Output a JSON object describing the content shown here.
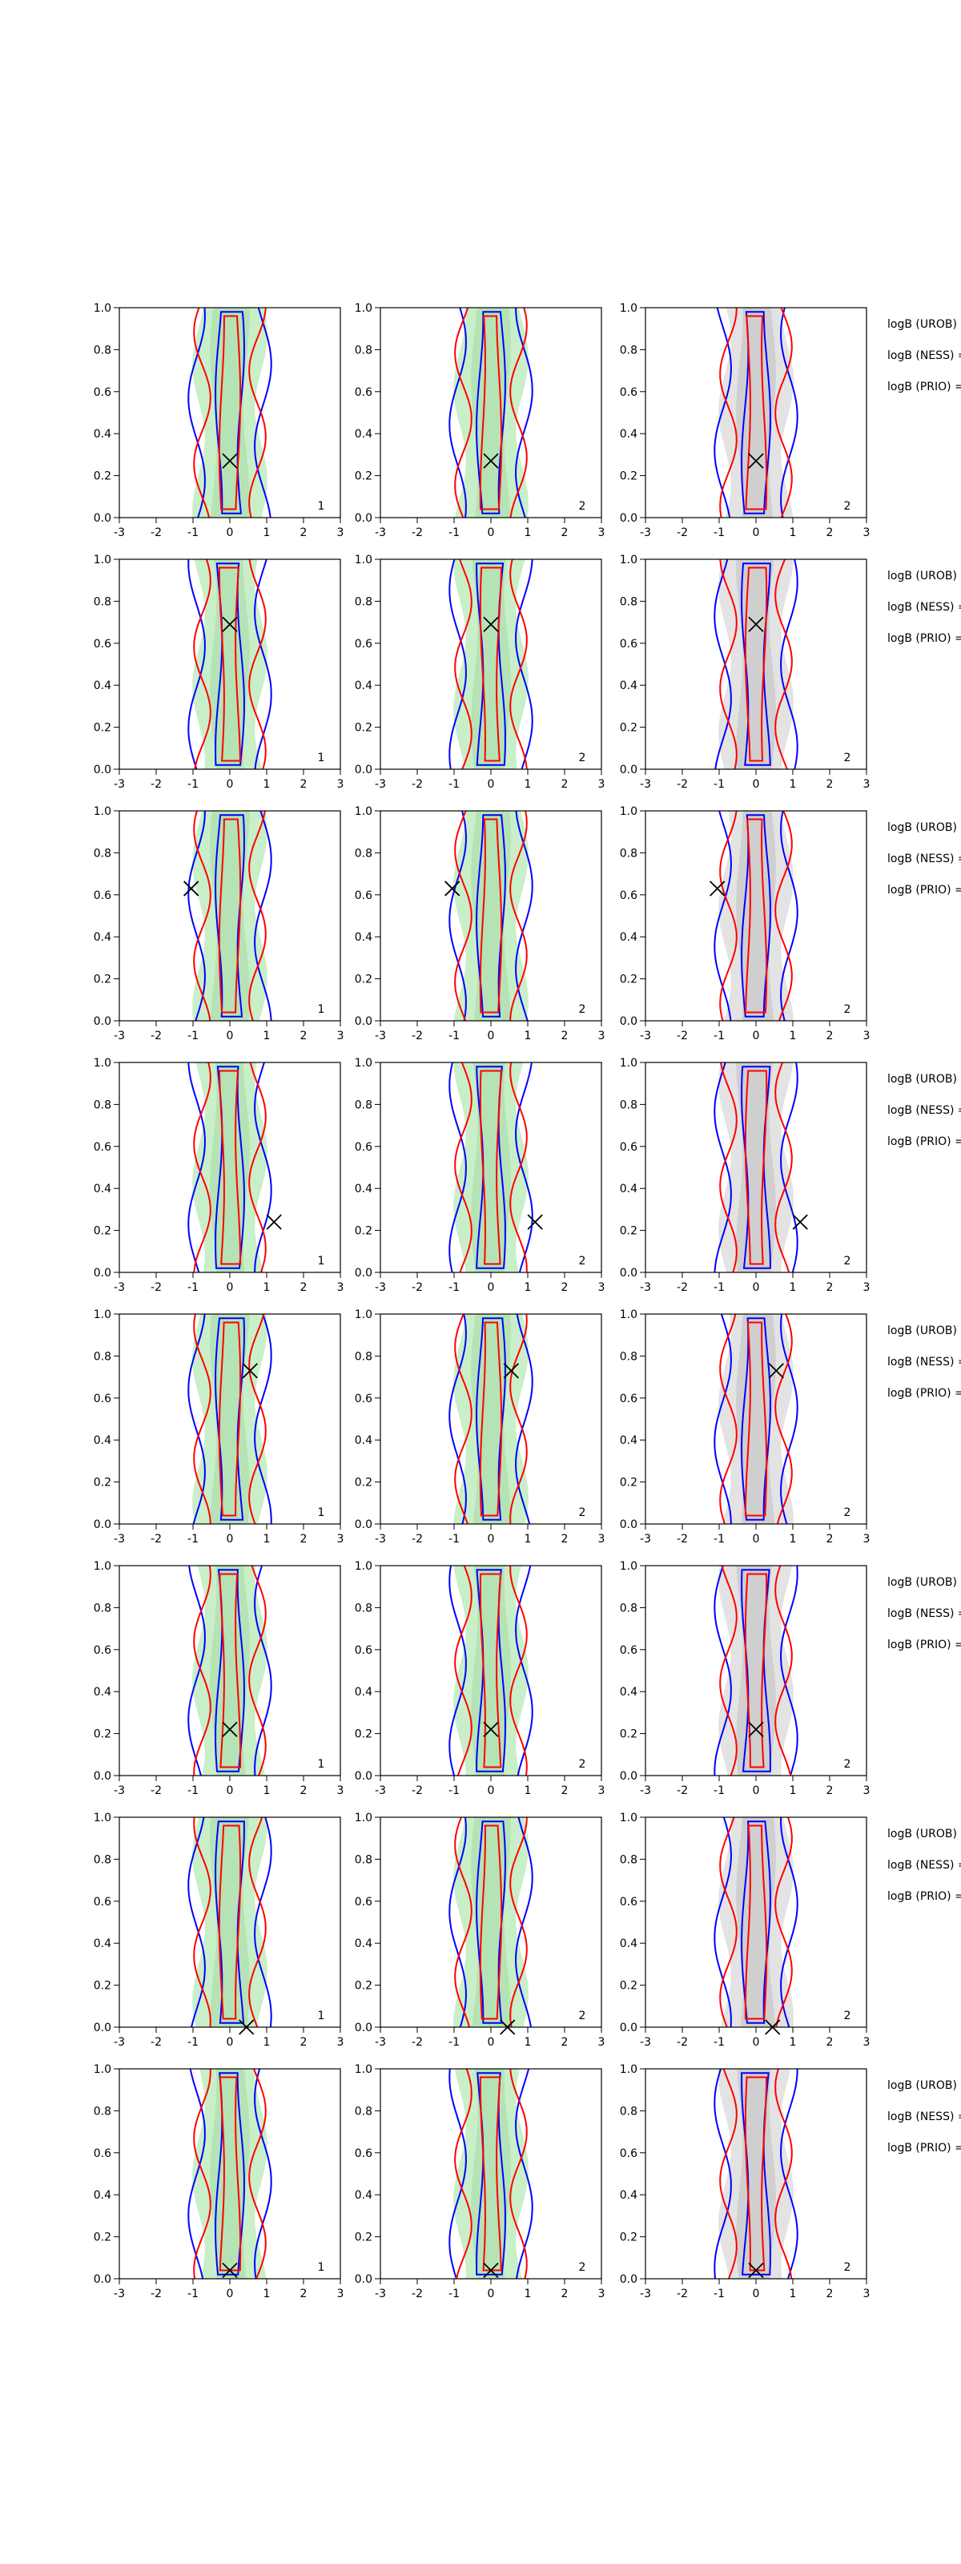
{
  "chart_data": [
    {
      "type": "contour",
      "annotation": "1",
      "x": [
        0
      ],
      "y": [
        0.27
      ],
      "xlim": [
        -3,
        3
      ],
      "xticks": [
        -3,
        -2,
        -1,
        0,
        1,
        2,
        3
      ],
      "ylim": [
        0,
        1
      ],
      "yticks": [
        {
          "value": 0,
          "label": "0.0"
        },
        {
          "value": 0.2,
          "label": "0.2"
        },
        {
          "value": 0.4,
          "label": "0.4"
        },
        {
          "value": 0.6,
          "label": "0.6"
        },
        {
          "value": 0.8,
          "label": "0.8"
        },
        {
          "value": 1,
          "label": "1.0"
        }
      ]
    },
    {
      "type": "contour",
      "annotation": "2",
      "x": [
        0
      ],
      "y": [
        0.27
      ],
      "xlim": [
        -3,
        3
      ],
      "xticks": [
        -3,
        -2,
        -1,
        0,
        1,
        2,
        3
      ],
      "ylim": [
        0,
        1
      ],
      "yticks": [
        {
          "value": 0,
          "label": "0.0"
        },
        {
          "value": 0.2,
          "label": "0.2"
        },
        {
          "value": 0.4,
          "label": "0.4"
        },
        {
          "value": 0.6,
          "label": "0.6"
        },
        {
          "value": 0.8,
          "label": "0.8"
        },
        {
          "value": 1,
          "label": "1.0"
        }
      ]
    },
    {
      "type": "contour",
      "annotation": "2",
      "x": [
        0
      ],
      "y": [
        0.27
      ],
      "xlim": [
        -3,
        3
      ],
      "xticks": [
        -3,
        -2,
        -1,
        0,
        1,
        2,
        3
      ],
      "ylim": [
        0,
        1
      ],
      "yticks": [
        {
          "value": 0,
          "label": "0.0"
        },
        {
          "value": 0.2,
          "label": "0.2"
        },
        {
          "value": 0.4,
          "label": "0.4"
        },
        {
          "value": 0.6,
          "label": "0.6"
        },
        {
          "value": 0.8,
          "label": "0.8"
        },
        {
          "value": 1,
          "label": "1.0"
        }
      ]
    },
    {
      "type": "contour",
      "annotation": "1",
      "x": [
        0
      ],
      "y": [
        0.69
      ],
      "xlim": [
        -3,
        3
      ],
      "xticks": [
        -3,
        -2,
        -1,
        0,
        1,
        2,
        3
      ],
      "ylim": [
        0,
        1
      ],
      "yticks": [
        {
          "value": 0,
          "label": "0.0"
        },
        {
          "value": 0.2,
          "label": "0.2"
        },
        {
          "value": 0.4,
          "label": "0.4"
        },
        {
          "value": 0.6,
          "label": "0.6"
        },
        {
          "value": 0.8,
          "label": "0.8"
        },
        {
          "value": 1,
          "label": "1.0"
        }
      ]
    },
    {
      "type": "contour",
      "annotation": "2",
      "x": [
        0
      ],
      "y": [
        0.69
      ],
      "xlim": [
        -3,
        3
      ],
      "xticks": [
        -3,
        -2,
        -1,
        0,
        1,
        2,
        3
      ],
      "ylim": [
        0,
        1
      ],
      "yticks": [
        {
          "value": 0,
          "label": "0.0"
        },
        {
          "value": 0.2,
          "label": "0.2"
        },
        {
          "value": 0.4,
          "label": "0.4"
        },
        {
          "value": 0.6,
          "label": "0.6"
        },
        {
          "value": 0.8,
          "label": "0.8"
        },
        {
          "value": 1,
          "label": "1.0"
        }
      ]
    },
    {
      "type": "contour",
      "annotation": "2",
      "x": [
        0
      ],
      "y": [
        0.69
      ],
      "xlim": [
        -3,
        3
      ],
      "xticks": [
        -3,
        -2,
        -1,
        0,
        1,
        2,
        3
      ],
      "ylim": [
        0,
        1
      ],
      "yticks": [
        {
          "value": 0,
          "label": "0.0"
        },
        {
          "value": 0.2,
          "label": "0.2"
        },
        {
          "value": 0.4,
          "label": "0.4"
        },
        {
          "value": 0.6,
          "label": "0.6"
        },
        {
          "value": 0.8,
          "label": "0.8"
        },
        {
          "value": 1,
          "label": "1.0"
        }
      ]
    },
    {
      "type": "contour",
      "annotation": "1",
      "x": [
        -1.05
      ],
      "y": [
        0.63
      ],
      "xlim": [
        -3,
        3
      ],
      "xticks": [
        -3,
        -2,
        -1,
        0,
        1,
        2,
        3
      ],
      "ylim": [
        0,
        1
      ],
      "yticks": [
        {
          "value": 0,
          "label": "0.0"
        },
        {
          "value": 0.2,
          "label": "0.2"
        },
        {
          "value": 0.4,
          "label": "0.4"
        },
        {
          "value": 0.6,
          "label": "0.6"
        },
        {
          "value": 0.8,
          "label": "0.8"
        },
        {
          "value": 1,
          "label": "1.0"
        }
      ]
    },
    {
      "type": "contour",
      "annotation": "2",
      "x": [
        -1.05
      ],
      "y": [
        0.63
      ],
      "xlim": [
        -3,
        3
      ],
      "xticks": [
        -3,
        -2,
        -1,
        0,
        1,
        2,
        3
      ],
      "ylim": [
        0,
        1
      ],
      "yticks": [
        {
          "value": 0,
          "label": "0.0"
        },
        {
          "value": 0.2,
          "label": "0.2"
        },
        {
          "value": 0.4,
          "label": "0.4"
        },
        {
          "value": 0.6,
          "label": "0.6"
        },
        {
          "value": 0.8,
          "label": "0.8"
        },
        {
          "value": 1,
          "label": "1.0"
        }
      ]
    },
    {
      "type": "contour",
      "annotation": "2",
      "x": [
        -1.05
      ],
      "y": [
        0.63
      ],
      "xlim": [
        -3,
        3
      ],
      "xticks": [
        -3,
        -2,
        -1,
        0,
        1,
        2,
        3
      ],
      "ylim": [
        0,
        1
      ],
      "yticks": [
        {
          "value": 0,
          "label": "0.0"
        },
        {
          "value": 0.2,
          "label": "0.2"
        },
        {
          "value": 0.4,
          "label": "0.4"
        },
        {
          "value": 0.6,
          "label": "0.6"
        },
        {
          "value": 0.8,
          "label": "0.8"
        },
        {
          "value": 1,
          "label": "1.0"
        }
      ]
    },
    {
      "type": "contour",
      "annotation": "1",
      "x": [
        1.2
      ],
      "y": [
        0.24
      ],
      "xlim": [
        -3,
        3
      ],
      "xticks": [
        -3,
        -2,
        -1,
        0,
        1,
        2,
        3
      ],
      "ylim": [
        0,
        1
      ],
      "yticks": [
        {
          "value": 0,
          "label": "0.0"
        },
        {
          "value": 0.2,
          "label": "0.2"
        },
        {
          "value": 0.4,
          "label": "0.4"
        },
        {
          "value": 0.6,
          "label": "0.6"
        },
        {
          "value": 0.8,
          "label": "0.8"
        },
        {
          "value": 1,
          "label": "1.0"
        }
      ]
    },
    {
      "type": "contour",
      "annotation": "2",
      "x": [
        1.2
      ],
      "y": [
        0.24
      ],
      "xlim": [
        -3,
        3
      ],
      "xticks": [
        -3,
        -2,
        -1,
        0,
        1,
        2,
        3
      ],
      "ylim": [
        0,
        1
      ],
      "yticks": [
        {
          "value": 0,
          "label": "0.0"
        },
        {
          "value": 0.2,
          "label": "0.2"
        },
        {
          "value": 0.4,
          "label": "0.4"
        },
        {
          "value": 0.6,
          "label": "0.6"
        },
        {
          "value": 0.8,
          "label": "0.8"
        },
        {
          "value": 1,
          "label": "1.0"
        }
      ]
    },
    {
      "type": "contour",
      "annotation": "2",
      "x": [
        1.2
      ],
      "y": [
        0.24
      ],
      "xlim": [
        -3,
        3
      ],
      "xticks": [
        -3,
        -2,
        -1,
        0,
        1,
        2,
        3
      ],
      "ylim": [
        0,
        1
      ],
      "yticks": [
        {
          "value": 0,
          "label": "0.0"
        },
        {
          "value": 0.2,
          "label": "0.2"
        },
        {
          "value": 0.4,
          "label": "0.4"
        },
        {
          "value": 0.6,
          "label": "0.6"
        },
        {
          "value": 0.8,
          "label": "0.8"
        },
        {
          "value": 1,
          "label": "1.0"
        }
      ]
    },
    {
      "type": "contour",
      "annotation": "1",
      "x": [
        0.55
      ],
      "y": [
        0.73
      ],
      "xlim": [
        -3,
        3
      ],
      "xticks": [
        -3,
        -2,
        -1,
        0,
        1,
        2,
        3
      ],
      "ylim": [
        0,
        1
      ],
      "yticks": [
        {
          "value": 0,
          "label": "0.0"
        },
        {
          "value": 0.2,
          "label": "0.2"
        },
        {
          "value": 0.4,
          "label": "0.4"
        },
        {
          "value": 0.6,
          "label": "0.6"
        },
        {
          "value": 0.8,
          "label": "0.8"
        },
        {
          "value": 1,
          "label": "1.0"
        }
      ]
    },
    {
      "type": "contour",
      "annotation": "2",
      "x": [
        0.55
      ],
      "y": [
        0.73
      ],
      "xlim": [
        -3,
        3
      ],
      "xticks": [
        -3,
        -2,
        -1,
        0,
        1,
        2,
        3
      ],
      "ylim": [
        0,
        1
      ],
      "yticks": [
        {
          "value": 0,
          "label": "0.0"
        },
        {
          "value": 0.2,
          "label": "0.2"
        },
        {
          "value": 0.4,
          "label": "0.4"
        },
        {
          "value": 0.6,
          "label": "0.6"
        },
        {
          "value": 0.8,
          "label": "0.8"
        },
        {
          "value": 1,
          "label": "1.0"
        }
      ]
    },
    {
      "type": "contour",
      "annotation": "2",
      "x": [
        0.55
      ],
      "y": [
        0.73
      ],
      "xlim": [
        -3,
        3
      ],
      "xticks": [
        -3,
        -2,
        -1,
        0,
        1,
        2,
        3
      ],
      "ylim": [
        0,
        1
      ],
      "yticks": [
        {
          "value": 0,
          "label": "0.0"
        },
        {
          "value": 0.2,
          "label": "0.2"
        },
        {
          "value": 0.4,
          "label": "0.4"
        },
        {
          "value": 0.6,
          "label": "0.6"
        },
        {
          "value": 0.8,
          "label": "0.8"
        },
        {
          "value": 1,
          "label": "1.0"
        }
      ]
    },
    {
      "type": "contour",
      "annotation": "1",
      "x": [
        0
      ],
      "y": [
        0.22
      ],
      "xlim": [
        -3,
        3
      ],
      "xticks": [
        -3,
        -2,
        -1,
        0,
        1,
        2,
        3
      ],
      "ylim": [
        0,
        1
      ],
      "yticks": [
        {
          "value": 0,
          "label": "0.0"
        },
        {
          "value": 0.2,
          "label": "0.2"
        },
        {
          "value": 0.4,
          "label": "0.4"
        },
        {
          "value": 0.6,
          "label": "0.6"
        },
        {
          "value": 0.8,
          "label": "0.8"
        },
        {
          "value": 1,
          "label": "1.0"
        }
      ]
    },
    {
      "type": "contour",
      "annotation": "2",
      "x": [
        0
      ],
      "y": [
        0.22
      ],
      "xlim": [
        -3,
        3
      ],
      "xticks": [
        -3,
        -2,
        -1,
        0,
        1,
        2,
        3
      ],
      "ylim": [
        0,
        1
      ],
      "yticks": [
        {
          "value": 0,
          "label": "0.0"
        },
        {
          "value": 0.2,
          "label": "0.2"
        },
        {
          "value": 0.4,
          "label": "0.4"
        },
        {
          "value": 0.6,
          "label": "0.6"
        },
        {
          "value": 0.8,
          "label": "0.8"
        },
        {
          "value": 1,
          "label": "1.0"
        }
      ]
    },
    {
      "type": "contour",
      "annotation": "2",
      "x": [
        0
      ],
      "y": [
        0.22
      ],
      "xlim": [
        -3,
        3
      ],
      "xticks": [
        -3,
        -2,
        -1,
        0,
        1,
        2,
        3
      ],
      "ylim": [
        0,
        1
      ],
      "yticks": [
        {
          "value": 0,
          "label": "0.0"
        },
        {
          "value": 0.2,
          "label": "0.2"
        },
        {
          "value": 0.4,
          "label": "0.4"
        },
        {
          "value": 0.6,
          "label": "0.6"
        },
        {
          "value": 0.8,
          "label": "0.8"
        },
        {
          "value": 1,
          "label": "1.0"
        }
      ]
    },
    {
      "type": "contour",
      "annotation": "1",
      "x": [
        0.45
      ],
      "y": [
        0.0
      ],
      "xlim": [
        -3,
        3
      ],
      "xticks": [
        -3,
        -2,
        -1,
        0,
        1,
        2,
        3
      ],
      "ylim": [
        0,
        1
      ],
      "yticks": [
        {
          "value": 0,
          "label": "0.0"
        },
        {
          "value": 0.2,
          "label": "0.2"
        },
        {
          "value": 0.4,
          "label": "0.4"
        },
        {
          "value": 0.6,
          "label": "0.6"
        },
        {
          "value": 0.8,
          "label": "0.8"
        },
        {
          "value": 1,
          "label": "1.0"
        }
      ]
    },
    {
      "type": "contour",
      "annotation": "2",
      "x": [
        0.45
      ],
      "y": [
        0.0
      ],
      "xlim": [
        -3,
        3
      ],
      "xticks": [
        -3,
        -2,
        -1,
        0,
        1,
        2,
        3
      ],
      "ylim": [
        0,
        1
      ],
      "yticks": [
        {
          "value": 0,
          "label": "0.0"
        },
        {
          "value": 0.2,
          "label": "0.2"
        },
        {
          "value": 0.4,
          "label": "0.4"
        },
        {
          "value": 0.6,
          "label": "0.6"
        },
        {
          "value": 0.8,
          "label": "0.8"
        },
        {
          "value": 1,
          "label": "1.0"
        }
      ]
    },
    {
      "type": "contour",
      "annotation": "2",
      "x": [
        0.45
      ],
      "y": [
        0.0
      ],
      "xlim": [
        -3,
        3
      ],
      "xticks": [
        -3,
        -2,
        -1,
        0,
        1,
        2,
        3
      ],
      "ylim": [
        0,
        1
      ],
      "yticks": [
        {
          "value": 0,
          "label": "0.0"
        },
        {
          "value": 0.2,
          "label": "0.2"
        },
        {
          "value": 0.4,
          "label": "0.4"
        },
        {
          "value": 0.6,
          "label": "0.6"
        },
        {
          "value": 0.8,
          "label": "0.8"
        },
        {
          "value": 1,
          "label": "1.0"
        }
      ]
    },
    {
      "type": "contour",
      "annotation": "1",
      "x": [
        0
      ],
      "y": [
        0.04
      ],
      "xlim": [
        -3,
        3
      ],
      "xticks": [
        -3,
        -2,
        -1,
        0,
        1,
        2,
        3
      ],
      "ylim": [
        0,
        1
      ],
      "yticks": [
        {
          "value": 0,
          "label": "0.0"
        },
        {
          "value": 0.2,
          "label": "0.2"
        },
        {
          "value": 0.4,
          "label": "0.4"
        },
        {
          "value": 0.6,
          "label": "0.6"
        },
        {
          "value": 0.8,
          "label": "0.8"
        },
        {
          "value": 1,
          "label": "1.0"
        }
      ]
    },
    {
      "type": "contour",
      "annotation": "2",
      "x": [
        0
      ],
      "y": [
        0.04
      ],
      "xlim": [
        -3,
        3
      ],
      "xticks": [
        -3,
        -2,
        -1,
        0,
        1,
        2,
        3
      ],
      "ylim": [
        0,
        1
      ],
      "yticks": [
        {
          "value": 0,
          "label": "0.0"
        },
        {
          "value": 0.2,
          "label": "0.2"
        },
        {
          "value": 0.4,
          "label": "0.4"
        },
        {
          "value": 0.6,
          "label": "0.6"
        },
        {
          "value": 0.8,
          "label": "0.8"
        },
        {
          "value": 1,
          "label": "1.0"
        }
      ]
    },
    {
      "type": "contour",
      "annotation": "2",
      "x": [
        0
      ],
      "y": [
        0.04
      ],
      "xlim": [
        -3,
        3
      ],
      "xticks": [
        -3,
        -2,
        -1,
        0,
        1,
        2,
        3
      ],
      "ylim": [
        0,
        1
      ],
      "yticks": [
        {
          "value": 0,
          "label": "0.0"
        },
        {
          "value": 0.2,
          "label": "0.2"
        },
        {
          "value": 0.4,
          "label": "0.4"
        },
        {
          "value": 0.6,
          "label": "0.6"
        },
        {
          "value": 0.8,
          "label": "0.8"
        },
        {
          "value": 1,
          "label": "1.0"
        }
      ]
    }
  ],
  "side_labels": [
    [
      "logB (UROB) =",
      "logB (NESS) =",
      "logB (PRIO) ="
    ],
    [
      "logB (UROB) =",
      "logB (NESS) =",
      "logB (PRIO) ="
    ],
    [
      "logB (UROB) =",
      "logB (NESS) =",
      "logB (PRIO) ="
    ],
    [
      "logB (UROB) =",
      "logB (NESS) =",
      "logB (PRIO) ="
    ],
    [
      "logB (UROB) =",
      "logB (NESS) =",
      "logB (PRIO) ="
    ],
    [
      "logB (UROB) =",
      "logB (NESS) =",
      "logB (PRIO) ="
    ],
    [
      "logB (UROB) =",
      "logB (NESS) =",
      "logB (PRIO) ="
    ],
    [
      "logB (UROB) =",
      "logB (NESS) =",
      "logB (PRIO) ="
    ]
  ]
}
